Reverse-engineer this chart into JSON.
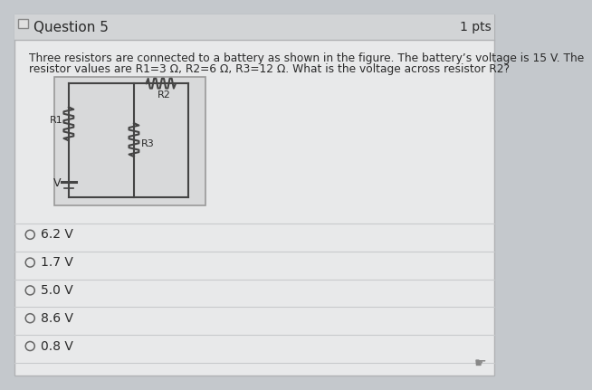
{
  "title": "Question 5",
  "pts": "1 pts",
  "description_line1": "Three resistors are connected to a battery as shown in the figure. The battery’s voltage is 15 V. The",
  "description_line2": "resistor values are R1=3 Ω, R2=6 Ω, R3=12 Ω. What is the voltage across resistor R2?",
  "choices": [
    "6.2 V",
    "1.7 V",
    "5.0 V",
    "8.6 V",
    "0.8 V"
  ],
  "outer_bg": "#c4c8cc",
  "panel_bg": "#e8e9ea",
  "header_bg": "#d2d4d6",
  "header_line_color": "#b0b2b4",
  "divider_color": "#c8cacc",
  "text_color": "#2a2a2a",
  "wire_color": "#444444",
  "circuit_bg": "#d8d9da",
  "circuit_border": "#999999"
}
